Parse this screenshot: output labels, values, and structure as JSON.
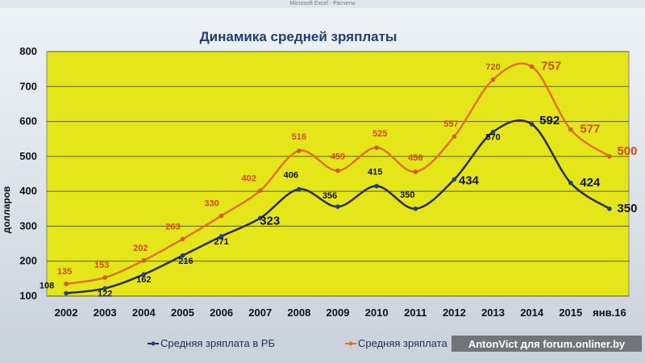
{
  "excel_titlebar": "Microsoft Excel - Расчеты",
  "watermark": "AntonVict для forum.onliner.by",
  "colors": {
    "plot_bg": "#e4e61a",
    "series_rb": "#2b2b2b",
    "series_other": "#e2702a",
    "label_other": "#d34a1e",
    "grid": "#5a5a00"
  },
  "chart_data": {
    "type": "line",
    "title": "Динамика средней зряплаты",
    "ylabel": "долларов",
    "xlabel": "",
    "ylim": [
      100,
      800
    ],
    "yticks": [
      100,
      200,
      300,
      400,
      500,
      600,
      700,
      800
    ],
    "categories": [
      "2002",
      "2003",
      "2004",
      "2005",
      "2006",
      "2007",
      "2008",
      "2009",
      "2010",
      "2011",
      "2012",
      "2013",
      "2014",
      "2015",
      "янв.16"
    ],
    "grid": true,
    "legend_position": "bottom",
    "series": [
      {
        "name": "Средняя зряплата в РБ",
        "values": [
          108,
          122,
          162,
          216,
          271,
          323,
          406,
          356,
          415,
          350,
          434,
          570,
          592,
          424,
          350
        ]
      },
      {
        "name": "Средняя зряплата",
        "values": [
          135,
          153,
          202,
          263,
          330,
          402,
          516,
          459,
          525,
          456,
          557,
          720,
          757,
          577,
          500
        ]
      }
    ]
  }
}
